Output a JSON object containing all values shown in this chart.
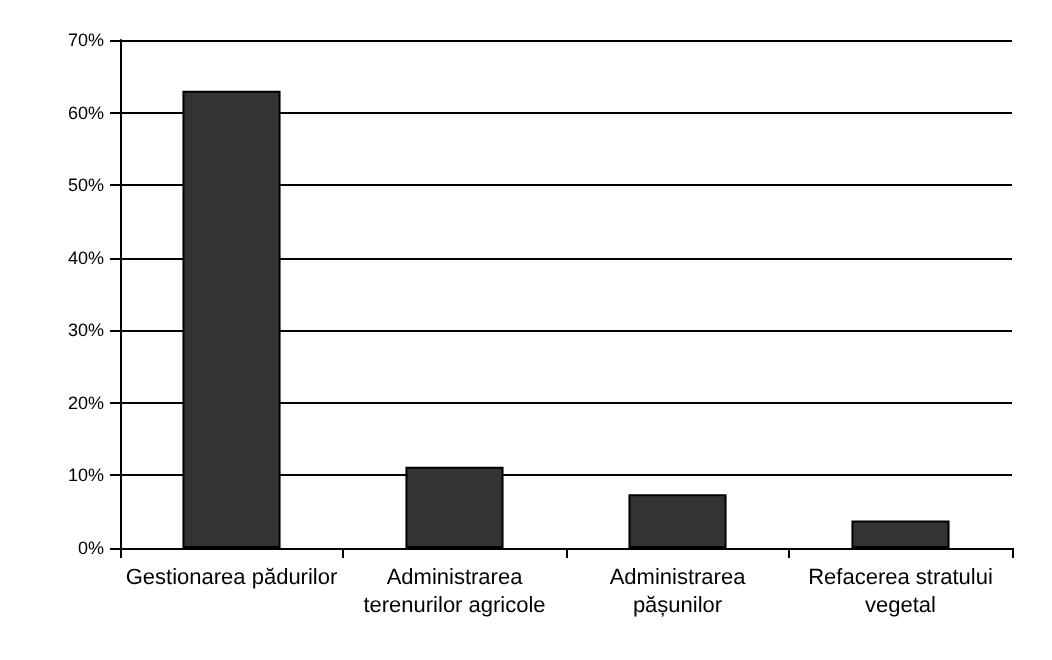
{
  "chart_data": {
    "type": "bar",
    "categories": [
      "Gestionarea pădurilor",
      "Administrarea\nterenurilor agricole",
      "Administrarea\npășunilor",
      "Refacerea stratului\nvegetal"
    ],
    "values": [
      63,
      11.2,
      7.4,
      3.8
    ],
    "color": "#333333",
    "ylim": [
      0,
      70
    ],
    "yticks": [
      {
        "value": 0,
        "label": "0%"
      },
      {
        "value": 10,
        "label": "10%"
      },
      {
        "value": 20,
        "label": "20%"
      },
      {
        "value": 30,
        "label": "30%"
      },
      {
        "value": 40,
        "label": "40%"
      },
      {
        "value": 50,
        "label": "50%"
      },
      {
        "value": 60,
        "label": "60%"
      },
      {
        "value": 70,
        "label": "70%"
      }
    ],
    "grid": true
  }
}
